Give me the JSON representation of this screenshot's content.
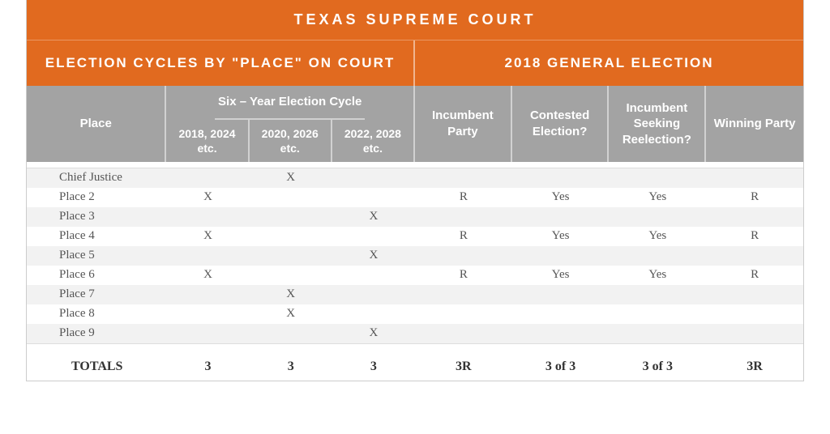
{
  "title": "TEXAS SUPREME COURT",
  "sections": {
    "left": "ELECTION CYCLES BY \"PLACE\" ON COURT",
    "right": "2018 GENERAL ELECTION"
  },
  "headers": {
    "place": "Place",
    "cycle_group": "Six – Year Election Cycle",
    "cycles": [
      "2018, 2024 etc.",
      "2020, 2026 etc.",
      "2022, 2028 etc."
    ],
    "incumbent": "Incumbent Party",
    "contested": "Contested Election?",
    "seeking": "Incumbent Seeking Reelection?",
    "winning": "Winning Party"
  },
  "rows": [
    {
      "place": "Chief Justice",
      "cyc": [
        "",
        "X",
        ""
      ],
      "inc": "",
      "con": "",
      "seek": "",
      "win": "",
      "stripe": true
    },
    {
      "place": "Place 2",
      "cyc": [
        "X",
        "",
        ""
      ],
      "inc": "R",
      "con": "Yes",
      "seek": "Yes",
      "win": "R",
      "stripe": false
    },
    {
      "place": "Place 3",
      "cyc": [
        "",
        "",
        "X"
      ],
      "inc": "",
      "con": "",
      "seek": "",
      "win": "",
      "stripe": true
    },
    {
      "place": "Place 4",
      "cyc": [
        "X",
        "",
        ""
      ],
      "inc": "R",
      "con": "Yes",
      "seek": "Yes",
      "win": "R",
      "stripe": false
    },
    {
      "place": "Place 5",
      "cyc": [
        "",
        "",
        "X"
      ],
      "inc": "",
      "con": "",
      "seek": "",
      "win": "",
      "stripe": true
    },
    {
      "place": "Place 6",
      "cyc": [
        "X",
        "",
        ""
      ],
      "inc": "R",
      "con": "Yes",
      "seek": "Yes",
      "win": "R",
      "stripe": false
    },
    {
      "place": "Place 7",
      "cyc": [
        "",
        "X",
        ""
      ],
      "inc": "",
      "con": "",
      "seek": "",
      "win": "",
      "stripe": true
    },
    {
      "place": "Place 8",
      "cyc": [
        "",
        "X",
        ""
      ],
      "inc": "",
      "con": "",
      "seek": "",
      "win": "",
      "stripe": false
    },
    {
      "place": "Place 9",
      "cyc": [
        "",
        "",
        "X"
      ],
      "inc": "",
      "con": "",
      "seek": "",
      "win": "",
      "stripe": true
    }
  ],
  "totals": {
    "label": "TOTALS",
    "cyc": [
      "3",
      "3",
      "3"
    ],
    "inc": "3R",
    "con": "3 of 3",
    "seek": "3 of 3",
    "win": "3R"
  },
  "colors": {
    "orange": "#e16a1f",
    "gray_header": "#a3a3a3",
    "stripe": "#f2f2f2",
    "text": "#555555"
  }
}
